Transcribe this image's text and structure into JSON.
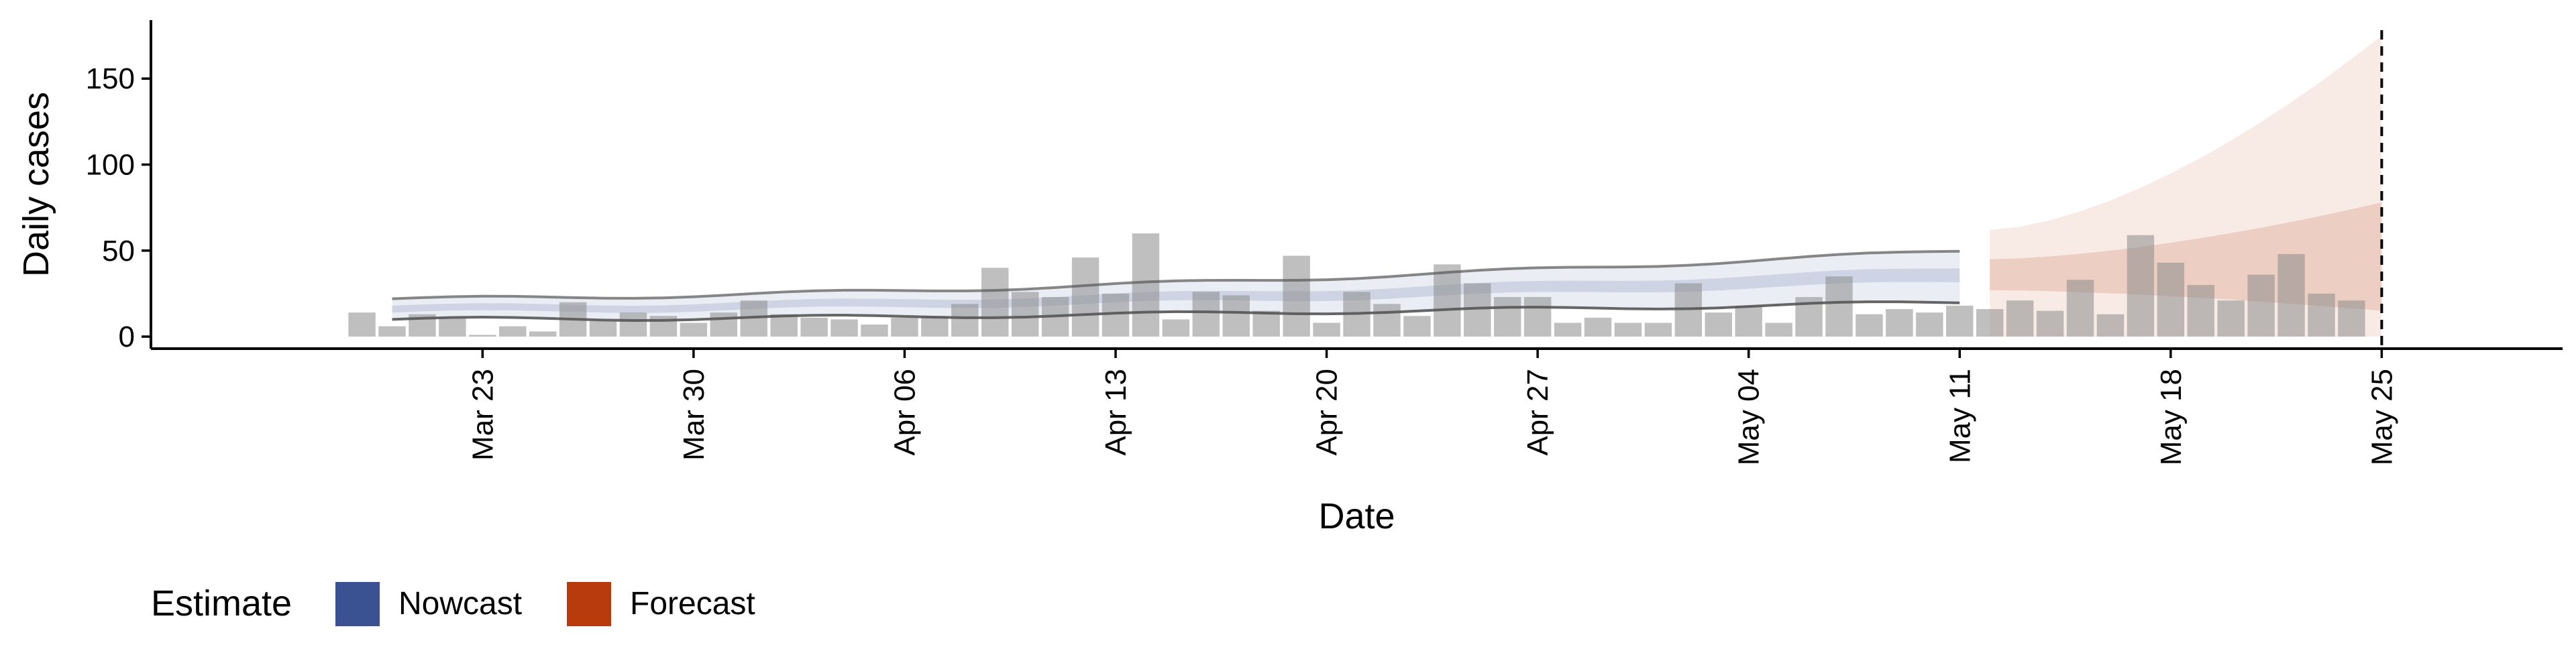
{
  "colors": {
    "nowcast": "#3a5192",
    "forecast": "#b73b0c",
    "bars": "#8a8a8a",
    "outline": "#555555",
    "axis": "#000000"
  },
  "chart_data": {
    "type": "bar",
    "title": "",
    "xlabel": "Date",
    "ylabel": "Daily cases",
    "ylim": [
      -7,
      184
    ],
    "yticks": [
      0,
      50,
      100,
      150
    ],
    "x_axis_type": "date",
    "xlim": [
      "2020-03-12",
      "2020-05-31"
    ],
    "x_ticks": [
      "2020-03-23",
      "2020-03-30",
      "2020-04-06",
      "2020-04-13",
      "2020-04-20",
      "2020-04-27",
      "2020-05-04",
      "2020-05-11",
      "2020-05-18",
      "2020-05-25"
    ],
    "x_tick_labels": [
      "Mar 23",
      "Mar 30",
      "Apr 06",
      "Apr 13",
      "Apr 20",
      "Apr 27",
      "May 04",
      "May 11",
      "May 18",
      "May 25"
    ],
    "grid": false,
    "forecast_date": "2020-05-25",
    "legend": {
      "title": "Estimate",
      "position": "bottom-left",
      "entries": [
        "Nowcast",
        "Forecast"
      ]
    },
    "reported_cases": {
      "start_date": "2020-03-19",
      "values": [
        14,
        6,
        13,
        11,
        1,
        6,
        3,
        20,
        9,
        14,
        12,
        8,
        14,
        21,
        13,
        11,
        10,
        7,
        11,
        12,
        19,
        40,
        26,
        23,
        46,
        25,
        60,
        10,
        26,
        24,
        15,
        47,
        8,
        26,
        19,
        12,
        42,
        31,
        23,
        23,
        8,
        11,
        8,
        8,
        31,
        14,
        18,
        8,
        23,
        35,
        13,
        16,
        14,
        18,
        16,
        21,
        15,
        33,
        13,
        59,
        43,
        30,
        21,
        36,
        48,
        25,
        21
      ]
    },
    "series": [
      {
        "name": "Nowcast",
        "dates_range": [
          "2020-03-20",
          "2020-05-11"
        ],
        "outer_lower": [
          10,
          20
        ],
        "outer_upper": [
          22,
          50
        ],
        "inner_lower": [
          14,
          32
        ],
        "inner_upper": [
          18,
          40
        ],
        "median": [
          16,
          35
        ]
      },
      {
        "name": "Forecast",
        "dates_range": [
          "2020-05-12",
          "2020-05-25"
        ],
        "outer_lower": [
          0,
          0
        ],
        "outer_upper": [
          62,
          175
        ],
        "inner_lower": [
          27,
          15
        ],
        "inner_upper": [
          45,
          78
        ],
        "median": [
          35,
          35
        ]
      }
    ]
  }
}
